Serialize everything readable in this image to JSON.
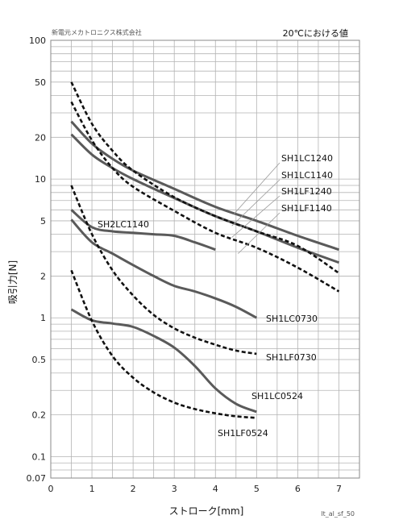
{
  "header": {
    "company": "新電元メカトロニクス株式会社",
    "condition": "20℃における値"
  },
  "footer": {
    "code": "lt_al_sf_50"
  },
  "chart_data": {
    "type": "line",
    "xlabel": "ストローク[mm]",
    "ylabel": "吸引力[N]",
    "xlim": [
      0,
      7.5
    ],
    "ylim": [
      0.07,
      100
    ],
    "yscale": "log",
    "grid": true,
    "x_ticks": [
      0,
      1,
      2,
      3,
      4,
      5,
      6,
      7
    ],
    "y_ticks": [
      {
        "value": 100,
        "label": "100"
      },
      {
        "value": 50,
        "label": "50"
      },
      {
        "value": 20,
        "label": "20"
      },
      {
        "value": 10,
        "label": "10"
      },
      {
        "value": 5,
        "label": "5"
      },
      {
        "value": 2,
        "label": "2"
      },
      {
        "value": 1,
        "label": "1"
      },
      {
        "value": 0.5,
        "label": "0.5"
      },
      {
        "value": 0.2,
        "label": "0.2"
      },
      {
        "value": 0.1,
        "label": "0.1"
      },
      {
        "value": 0.07,
        "label": "0.07"
      }
    ],
    "series": [
      {
        "name": "SH1LC1240",
        "style": "solid",
        "x": [
          0.5,
          1,
          1.5,
          2,
          3,
          4,
          5,
          6,
          7
        ],
        "y": [
          26,
          18,
          14,
          11.5,
          8.5,
          6.3,
          5,
          3.9,
          3.1
        ]
      },
      {
        "name": "SH1LC1140",
        "style": "solid",
        "x": [
          0.5,
          1,
          1.5,
          2,
          3,
          4,
          5,
          6,
          7
        ],
        "y": [
          21,
          15,
          12,
          10,
          7.3,
          5.4,
          4.2,
          3.2,
          2.5
        ]
      },
      {
        "name": "SH1LF1240",
        "style": "dashed",
        "x": [
          0.5,
          1,
          1.5,
          2,
          3,
          4,
          5,
          6,
          7
        ],
        "y": [
          50,
          25,
          16,
          11.5,
          7.4,
          5.4,
          4.2,
          3.3,
          2.1
        ]
      },
      {
        "name": "SH1LF1140",
        "style": "dashed",
        "x": [
          0.5,
          1,
          1.5,
          2,
          3,
          4,
          5,
          6,
          7
        ],
        "y": [
          36,
          19,
          12,
          8.8,
          5.9,
          4.1,
          3.2,
          2.3,
          1.55
        ]
      },
      {
        "name": "SH2LC1140",
        "style": "solid",
        "x": [
          0.5,
          1,
          1.5,
          2,
          2.5,
          3,
          3.5,
          4
        ],
        "y": [
          6,
          4.5,
          4.2,
          4.1,
          4.0,
          3.9,
          3.5,
          3.1
        ]
      },
      {
        "name": "SH1LC0730",
        "style": "solid",
        "x": [
          0.5,
          1,
          1.5,
          2,
          2.5,
          3,
          3.5,
          4,
          4.5,
          5
        ],
        "y": [
          5.1,
          3.5,
          2.9,
          2.4,
          2.0,
          1.7,
          1.55,
          1.38,
          1.2,
          1.0
        ]
      },
      {
        "name": "SH1LF0730",
        "style": "dashed",
        "x": [
          0.5,
          1,
          1.5,
          2,
          2.5,
          3,
          3.5,
          4,
          4.5,
          5
        ],
        "y": [
          9.0,
          4.0,
          2.2,
          1.45,
          1.05,
          0.84,
          0.72,
          0.64,
          0.58,
          0.55
        ]
      },
      {
        "name": "SH1LC0524",
        "style": "solid",
        "x": [
          0.5,
          1,
          1.5,
          2,
          2.5,
          3,
          3.5,
          4,
          4.5,
          5
        ],
        "y": [
          1.15,
          0.96,
          0.91,
          0.86,
          0.74,
          0.61,
          0.45,
          0.31,
          0.24,
          0.21
        ]
      },
      {
        "name": "SH1LF0524",
        "style": "dashed",
        "x": [
          0.5,
          1,
          1.5,
          2,
          2.5,
          3,
          3.5,
          4,
          4.5,
          5
        ],
        "y": [
          2.2,
          0.95,
          0.53,
          0.37,
          0.29,
          0.245,
          0.22,
          0.205,
          0.195,
          0.19
        ]
      }
    ]
  },
  "series_labels": [
    {
      "text": "SH1LC1240",
      "anchor_x": 4.45,
      "anchor_y": 5.6
    },
    {
      "text": "SH1LC1140",
      "anchor_x": 4.4,
      "anchor_y": 4.6
    },
    {
      "text": "SH1LF1240",
      "anchor_x": 4.4,
      "anchor_y": 3.8
    },
    {
      "text": "SH1LF1140",
      "anchor_x": 4.55,
      "anchor_y": 2.9
    },
    {
      "text": "SH2LC1140"
    },
    {
      "text": "SH1LC0730"
    },
    {
      "text": "SH1LF0730"
    },
    {
      "text": "SH1LC0524"
    },
    {
      "text": "SH1LF0524"
    }
  ]
}
